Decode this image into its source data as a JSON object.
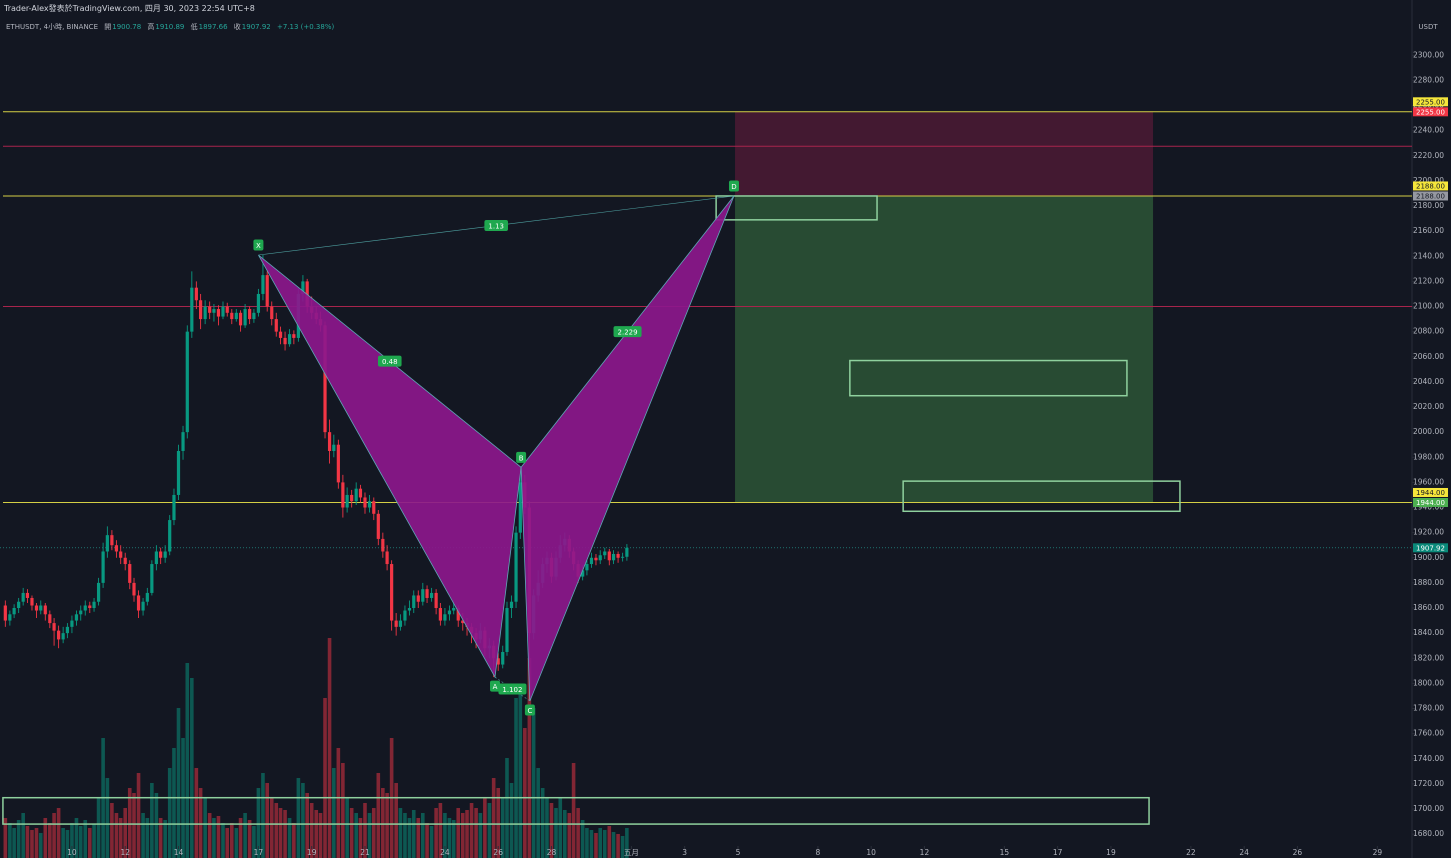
{
  "header": {
    "attribution": "Trader-Alex發表於TradingView.com, 四月 30, 2023 22:54 UTC+8"
  },
  "chart_data": {
    "type": "candlestick",
    "symbol": "ETHUSDT, 4小時, BINANCE",
    "ohlc_labels": [
      "開",
      "高",
      "低",
      "收"
    ],
    "change": "+7.13 (+0.38%)",
    "y_unit": "USDT",
    "up_color": "#089981",
    "down_color": "#f23645",
    "grid": false,
    "xlim": [
      7.3,
      60.3
    ],
    "ylim": [
      1661,
      2344
    ],
    "xticks": [
      10,
      12,
      14,
      17,
      19,
      21,
      24,
      26,
      28,
      {
        "value": 31,
        "label": "五月"
      },
      {
        "value": 33,
        "label": "3"
      },
      {
        "value": 35,
        "label": "5"
      },
      {
        "value": 38,
        "label": "8"
      },
      {
        "value": 40,
        "label": "10"
      },
      {
        "value": 42,
        "label": "12"
      },
      {
        "value": 45,
        "label": "15"
      },
      {
        "value": 47,
        "label": "17"
      },
      {
        "value": 49,
        "label": "19"
      },
      {
        "value": 52,
        "label": "22"
      },
      {
        "value": 54,
        "label": "24"
      },
      {
        "value": 56,
        "label": "26"
      },
      {
        "value": 59,
        "label": "29"
      }
    ],
    "yticks": [
      {
        "value": 1680,
        "label": "1680.00"
      },
      {
        "value": 1700,
        "label": "1700.00"
      },
      {
        "value": 1720,
        "label": "1720.00"
      },
      {
        "value": 1740,
        "label": "1740.00"
      },
      {
        "value": 1760,
        "label": "1760.00"
      },
      {
        "value": 1780,
        "label": "1780.00"
      },
      {
        "value": 1800,
        "label": "1800.00"
      },
      {
        "value": 1820,
        "label": "1820.00"
      },
      {
        "value": 1840,
        "label": "1840.00"
      },
      {
        "value": 1860,
        "label": "1860.00"
      },
      {
        "value": 1880,
        "label": "1880.00"
      },
      {
        "value": 1900,
        "label": "1900.00"
      },
      {
        "value": 1920,
        "label": "1920.00"
      },
      {
        "value": 1940,
        "label": "1940.00"
      },
      {
        "value": 1960,
        "label": "1960.00"
      },
      {
        "value": 1980,
        "label": "1980.00"
      },
      {
        "value": 2000,
        "label": "2000.00"
      },
      {
        "value": 2020,
        "label": "2020.00"
      },
      {
        "value": 2040,
        "label": "2040.00"
      },
      {
        "value": 2060,
        "label": "2060.00"
      },
      {
        "value": 2080,
        "label": "2080.00"
      },
      {
        "value": 2100,
        "label": "2100.00"
      },
      {
        "value": 2120,
        "label": "2120.00"
      },
      {
        "value": 2140,
        "label": "2140.00"
      },
      {
        "value": 2160,
        "label": "2160.00"
      },
      {
        "value": 2180,
        "label": "2180.00"
      },
      {
        "value": 2200,
        "label": "2200.00"
      },
      {
        "value": 2220,
        "label": "2220.00"
      },
      {
        "value": 2240,
        "label": "2240.00"
      },
      {
        "value": 2260,
        "label": "2260.00"
      },
      {
        "value": 2280,
        "label": "2280.00"
      },
      {
        "value": 2300,
        "label": "2300.00"
      }
    ],
    "candles": [
      [
        7.5,
        1862,
        1866,
        1845,
        1850,
        40
      ],
      [
        7.67,
        1850,
        1858,
        1846,
        1855,
        35
      ],
      [
        7.83,
        1855,
        1863,
        1852,
        1860,
        30
      ],
      [
        8,
        1860,
        1868,
        1856,
        1865,
        38
      ],
      [
        8.17,
        1865,
        1876,
        1862,
        1872,
        45
      ],
      [
        8.33,
        1872,
        1875,
        1864,
        1868,
        32
      ],
      [
        8.5,
        1868,
        1870,
        1858,
        1862,
        28
      ],
      [
        8.67,
        1862,
        1864,
        1852,
        1858,
        30
      ],
      [
        8.83,
        1858,
        1866,
        1855,
        1862,
        25
      ],
      [
        9,
        1862,
        1864,
        1850,
        1855,
        40
      ],
      [
        9.17,
        1855,
        1858,
        1844,
        1848,
        35
      ],
      [
        9.33,
        1848,
        1852,
        1830,
        1842,
        45
      ],
      [
        9.5,
        1842,
        1846,
        1828,
        1835,
        50
      ],
      [
        9.67,
        1835,
        1845,
        1832,
        1840,
        30
      ],
      [
        9.83,
        1840,
        1848,
        1836,
        1845,
        28
      ],
      [
        10,
        1845,
        1854,
        1840,
        1850,
        35
      ],
      [
        10.17,
        1850,
        1858,
        1846,
        1855,
        40
      ],
      [
        10.33,
        1855,
        1862,
        1850,
        1858,
        32
      ],
      [
        10.5,
        1858,
        1866,
        1854,
        1862,
        38
      ],
      [
        10.67,
        1862,
        1865,
        1856,
        1860,
        30
      ],
      [
        10.83,
        1860,
        1868,
        1857,
        1865,
        34
      ],
      [
        11,
        1865,
        1884,
        1862,
        1880,
        60
      ],
      [
        11.17,
        1880,
        1912,
        1876,
        1905,
        120
      ],
      [
        11.33,
        1905,
        1925,
        1900,
        1918,
        80
      ],
      [
        11.5,
        1918,
        1922,
        1906,
        1910,
        55
      ],
      [
        11.67,
        1910,
        1914,
        1900,
        1905,
        45
      ],
      [
        11.83,
        1905,
        1910,
        1895,
        1900,
        40
      ],
      [
        12,
        1900,
        1904,
        1890,
        1895,
        50
      ],
      [
        12.17,
        1895,
        1898,
        1875,
        1880,
        70
      ],
      [
        12.33,
        1880,
        1884,
        1865,
        1870,
        65
      ],
      [
        12.5,
        1870,
        1874,
        1852,
        1858,
        85
      ],
      [
        12.67,
        1858,
        1868,
        1854,
        1865,
        45
      ],
      [
        12.83,
        1865,
        1876,
        1862,
        1872,
        40
      ],
      [
        13,
        1872,
        1898,
        1870,
        1895,
        75
      ],
      [
        13.17,
        1895,
        1910,
        1890,
        1905,
        65
      ],
      [
        13.33,
        1905,
        1908,
        1895,
        1900,
        40
      ],
      [
        13.5,
        1900,
        1910,
        1896,
        1905,
        38
      ],
      [
        13.67,
        1905,
        1934,
        1902,
        1930,
        90
      ],
      [
        13.83,
        1930,
        1955,
        1926,
        1950,
        110
      ],
      [
        14,
        1950,
        1990,
        1946,
        1985,
        150
      ],
      [
        14.17,
        1985,
        2005,
        1978,
        2000,
        120
      ],
      [
        14.33,
        2000,
        2085,
        1995,
        2080,
        195
      ],
      [
        14.5,
        2080,
        2128,
        2075,
        2115,
        180
      ],
      [
        14.67,
        2115,
        2120,
        2098,
        2105,
        90
      ],
      [
        14.83,
        2105,
        2110,
        2082,
        2090,
        70
      ],
      [
        15,
        2090,
        2105,
        2086,
        2100,
        60
      ],
      [
        15.17,
        2100,
        2104,
        2090,
        2095,
        45
      ],
      [
        15.33,
        2095,
        2102,
        2088,
        2098,
        40
      ],
      [
        15.5,
        2098,
        2101,
        2085,
        2092,
        42
      ],
      [
        15.67,
        2092,
        2104,
        2090,
        2100,
        35
      ],
      [
        15.83,
        2100,
        2103,
        2092,
        2095,
        30
      ],
      [
        16,
        2095,
        2098,
        2086,
        2090,
        35
      ],
      [
        16.17,
        2090,
        2098,
        2088,
        2095,
        30
      ],
      [
        16.33,
        2095,
        2097,
        2080,
        2085,
        40
      ],
      [
        16.5,
        2085,
        2102,
        2083,
        2098,
        45
      ],
      [
        16.67,
        2098,
        2100,
        2086,
        2090,
        38
      ],
      [
        16.83,
        2090,
        2098,
        2087,
        2095,
        32
      ],
      [
        17,
        2095,
        2114,
        2092,
        2110,
        70
      ],
      [
        17.17,
        2110,
        2141,
        2105,
        2125,
        85
      ],
      [
        17.33,
        2125,
        2128,
        2096,
        2100,
        75
      ],
      [
        17.5,
        2100,
        2104,
        2085,
        2090,
        60
      ],
      [
        17.67,
        2090,
        2095,
        2076,
        2080,
        55
      ],
      [
        17.83,
        2080,
        2084,
        2070,
        2075,
        50
      ],
      [
        18,
        2075,
        2080,
        2065,
        2070,
        48
      ],
      [
        18.17,
        2070,
        2082,
        2068,
        2078,
        40
      ],
      [
        18.33,
        2078,
        2081,
        2070,
        2075,
        35
      ],
      [
        18.5,
        2075,
        2115,
        2072,
        2110,
        80
      ],
      [
        18.67,
        2110,
        2125,
        2104,
        2120,
        75
      ],
      [
        18.83,
        2120,
        2122,
        2095,
        2100,
        65
      ],
      [
        19,
        2100,
        2108,
        2090,
        2095,
        55
      ],
      [
        19.17,
        2095,
        2100,
        2086,
        2090,
        48
      ],
      [
        19.33,
        2090,
        2096,
        2080,
        2085,
        45
      ],
      [
        19.5,
        2085,
        2088,
        1995,
        2000,
        160
      ],
      [
        19.67,
        2000,
        2010,
        1975,
        1985,
        220
      ],
      [
        19.83,
        1985,
        1998,
        1980,
        1990,
        90
      ],
      [
        20,
        1990,
        1994,
        1955,
        1960,
        110
      ],
      [
        20.17,
        1960,
        1966,
        1932,
        1940,
        95
      ],
      [
        20.33,
        1940,
        1956,
        1936,
        1950,
        60
      ],
      [
        20.5,
        1950,
        1954,
        1940,
        1945,
        50
      ],
      [
        20.67,
        1945,
        1960,
        1942,
        1955,
        45
      ],
      [
        20.83,
        1955,
        1958,
        1944,
        1948,
        40
      ],
      [
        21,
        1948,
        1952,
        1935,
        1940,
        55
      ],
      [
        21.17,
        1940,
        1950,
        1936,
        1945,
        45
      ],
      [
        21.33,
        1945,
        1948,
        1930,
        1935,
        50
      ],
      [
        21.5,
        1935,
        1938,
        1910,
        1915,
        85
      ],
      [
        21.67,
        1915,
        1920,
        1900,
        1905,
        70
      ],
      [
        21.83,
        1905,
        1910,
        1890,
        1895,
        65
      ],
      [
        22,
        1895,
        1898,
        1842,
        1850,
        120
      ],
      [
        22.17,
        1850,
        1856,
        1838,
        1845,
        75
      ],
      [
        22.33,
        1845,
        1855,
        1842,
        1850,
        50
      ],
      [
        22.5,
        1850,
        1862,
        1846,
        1858,
        45
      ],
      [
        22.67,
        1858,
        1866,
        1854,
        1860,
        40
      ],
      [
        22.83,
        1860,
        1874,
        1856,
        1870,
        48
      ],
      [
        23,
        1870,
        1874,
        1860,
        1865,
        40
      ],
      [
        23.17,
        1865,
        1880,
        1862,
        1875,
        45
      ],
      [
        23.33,
        1875,
        1878,
        1864,
        1868,
        35
      ],
      [
        23.5,
        1868,
        1876,
        1865,
        1872,
        32
      ],
      [
        23.67,
        1872,
        1875,
        1855,
        1860,
        50
      ],
      [
        23.83,
        1860,
        1864,
        1846,
        1850,
        55
      ],
      [
        24,
        1850,
        1860,
        1846,
        1855,
        45
      ],
      [
        24.17,
        1855,
        1862,
        1850,
        1858,
        40
      ],
      [
        24.33,
        1858,
        1866,
        1855,
        1860,
        38
      ],
      [
        24.5,
        1860,
        1862,
        1845,
        1850,
        50
      ],
      [
        24.67,
        1850,
        1856,
        1842,
        1848,
        45
      ],
      [
        24.83,
        1848,
        1852,
        1838,
        1845,
        48
      ],
      [
        25,
        1845,
        1848,
        1832,
        1840,
        55
      ],
      [
        25.17,
        1840,
        1844,
        1828,
        1835,
        50
      ],
      [
        25.33,
        1835,
        1848,
        1832,
        1842,
        45
      ],
      [
        25.5,
        1842,
        1845,
        1822,
        1828,
        60
      ],
      [
        25.67,
        1828,
        1836,
        1820,
        1830,
        55
      ],
      [
        25.83,
        1830,
        1834,
        1805,
        1820,
        80
      ],
      [
        26,
        1820,
        1824,
        1810,
        1815,
        70
      ],
      [
        26.17,
        1815,
        1830,
        1812,
        1825,
        60
      ],
      [
        26.33,
        1825,
        1865,
        1822,
        1860,
        100
      ],
      [
        26.5,
        1860,
        1870,
        1852,
        1865,
        75
      ],
      [
        26.67,
        1865,
        1925,
        1860,
        1920,
        160
      ],
      [
        26.83,
        1920,
        1972,
        1915,
        1960,
        170
      ],
      [
        27,
        1960,
        1966,
        1935,
        1940,
        130
      ],
      [
        27.17,
        1940,
        1945,
        1786,
        1840,
        200
      ],
      [
        27.33,
        1840,
        1875,
        1835,
        1870,
        150
      ],
      [
        27.5,
        1870,
        1890,
        1865,
        1880,
        90
      ],
      [
        27.67,
        1880,
        1900,
        1876,
        1895,
        70
      ],
      [
        27.83,
        1895,
        1905,
        1888,
        1900,
        60
      ],
      [
        28,
        1900,
        1904,
        1880,
        1885,
        55
      ],
      [
        28.17,
        1885,
        1905,
        1882,
        1900,
        50
      ],
      [
        28.33,
        1900,
        1918,
        1896,
        1910,
        60
      ],
      [
        28.5,
        1910,
        1920,
        1905,
        1915,
        48
      ],
      [
        28.67,
        1915,
        1918,
        1900,
        1905,
        45
      ],
      [
        28.83,
        1905,
        1908,
        1890,
        1895,
        95
      ],
      [
        29,
        1895,
        1898,
        1880,
        1885,
        50
      ],
      [
        29.17,
        1885,
        1894,
        1882,
        1890,
        38
      ],
      [
        29.33,
        1890,
        1898,
        1886,
        1895,
        30
      ],
      [
        29.5,
        1895,
        1904,
        1892,
        1900,
        28
      ],
      [
        29.67,
        1900,
        1903,
        1894,
        1898,
        25
      ],
      [
        29.83,
        1898,
        1906,
        1895,
        1902,
        30
      ],
      [
        30,
        1902,
        1908,
        1899,
        1905,
        28
      ],
      [
        30.17,
        1905,
        1907,
        1894,
        1898,
        32
      ],
      [
        30.33,
        1898,
        1906,
        1895,
        1903,
        26
      ],
      [
        30.5,
        1903,
        1905,
        1896,
        1900,
        24
      ],
      [
        30.67,
        1900,
        1904,
        1897,
        1900.78,
        22
      ],
      [
        30.83,
        1900.78,
        1910.89,
        1897.66,
        1907.92,
        30
      ]
    ],
    "last_price": 1907.92,
    "levels": [
      {
        "value": 2255,
        "label": "2255.00",
        "color": "#d4cf45"
      },
      {
        "value": 2227.6,
        "color": "#a8244c"
      },
      {
        "value": 2188,
        "label": "2188.00",
        "color": "#d4cf45"
      },
      {
        "value": 2100,
        "color": "#a8244c"
      },
      {
        "value": 1944,
        "label": "1944.00",
        "color": "#d4cf45"
      }
    ],
    "position": {
      "x": [
        34.89,
        50.58
      ],
      "stop": {
        "value": 2255,
        "label": "2255.00",
        "color": "#f23645"
      },
      "entry": {
        "value": 2188,
        "label": "2188.00",
        "color": "#9598a1"
      },
      "target": {
        "value": 1944,
        "label": "1944.00",
        "color": "#4caf50"
      }
    },
    "boxes": [
      {
        "x": [
          34.18,
          40.22
        ],
        "y": [
          2188,
          2169
        ]
      },
      {
        "x": [
          39.2,
          49.6
        ],
        "y": [
          2057,
          2029
        ]
      },
      {
        "x": [
          41.2,
          51.59
        ],
        "y": [
          1961,
          1937
        ]
      },
      {
        "x": [
          7.41,
          50.43
        ],
        "y": [
          1709,
          1688
        ]
      }
    ],
    "pattern": {
      "points": [
        {
          "label": "X",
          "x": 17.0,
          "y": 2141
        },
        {
          "label": "A",
          "x": 25.88,
          "y": 1805
        },
        {
          "label": "B",
          "x": 26.86,
          "y": 1972
        },
        {
          "label": "C",
          "x": 27.19,
          "y": 1786
        },
        {
          "label": "D",
          "x": 34.85,
          "y": 2188
        }
      ],
      "ratios": {
        "XB": 0.48,
        "AC": 1.102,
        "BD": 2.229,
        "XD": 1.13
      }
    }
  }
}
